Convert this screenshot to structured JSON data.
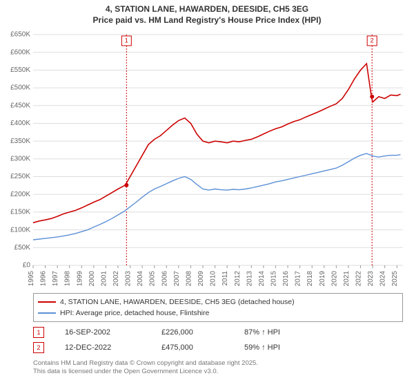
{
  "title_line1": "4, STATION LANE, HAWARDEN, DEESIDE, CH5 3EG",
  "title_line2": "Price paid vs. HM Land Registry's House Price Index (HPI)",
  "chart": {
    "type": "line",
    "background_color": "#ffffff",
    "grid_color": "#dddddd",
    "axis_text_color": "#666666",
    "xlim": [
      1995,
      2025.5
    ],
    "ylim": [
      0,
      650000
    ],
    "ytick_step": 50000,
    "ytick_labels": [
      "£0",
      "£50K",
      "£100K",
      "£150K",
      "£200K",
      "£250K",
      "£300K",
      "£350K",
      "£400K",
      "£450K",
      "£500K",
      "£550K",
      "£600K",
      "£650K"
    ],
    "xticks": [
      1995,
      1996,
      1997,
      1998,
      1999,
      2000,
      2001,
      2002,
      2003,
      2004,
      2005,
      2006,
      2007,
      2008,
      2009,
      2010,
      2011,
      2012,
      2013,
      2014,
      2015,
      2016,
      2017,
      2018,
      2019,
      2020,
      2021,
      2022,
      2023,
      2024,
      2025
    ],
    "series": {
      "price_paid": {
        "label": "4, STATION LANE, HAWARDEN, DEESIDE, CH5 3EG (detached house)",
        "color": "#cc0000",
        "line_width": 1.6,
        "data": [
          [
            1995.0,
            120000
          ],
          [
            1995.5,
            125000
          ],
          [
            1996.0,
            128000
          ],
          [
            1996.5,
            132000
          ],
          [
            1997.0,
            138000
          ],
          [
            1997.5,
            145000
          ],
          [
            1998.0,
            150000
          ],
          [
            1998.5,
            155000
          ],
          [
            1999.0,
            162000
          ],
          [
            1999.5,
            170000
          ],
          [
            2000.0,
            178000
          ],
          [
            2000.5,
            185000
          ],
          [
            2001.0,
            195000
          ],
          [
            2001.5,
            205000
          ],
          [
            2002.0,
            215000
          ],
          [
            2002.6,
            226000
          ],
          [
            2003.0,
            250000
          ],
          [
            2003.5,
            280000
          ],
          [
            2004.0,
            310000
          ],
          [
            2004.5,
            340000
          ],
          [
            2005.0,
            355000
          ],
          [
            2005.5,
            365000
          ],
          [
            2006.0,
            380000
          ],
          [
            2006.5,
            395000
          ],
          [
            2007.0,
            408000
          ],
          [
            2007.5,
            415000
          ],
          [
            2008.0,
            400000
          ],
          [
            2008.5,
            370000
          ],
          [
            2009.0,
            350000
          ],
          [
            2009.5,
            345000
          ],
          [
            2010.0,
            350000
          ],
          [
            2010.5,
            348000
          ],
          [
            2011.0,
            345000
          ],
          [
            2011.5,
            350000
          ],
          [
            2012.0,
            348000
          ],
          [
            2012.5,
            352000
          ],
          [
            2013.0,
            355000
          ],
          [
            2013.5,
            362000
          ],
          [
            2014.0,
            370000
          ],
          [
            2014.5,
            378000
          ],
          [
            2015.0,
            385000
          ],
          [
            2015.5,
            390000
          ],
          [
            2016.0,
            398000
          ],
          [
            2016.5,
            405000
          ],
          [
            2017.0,
            410000
          ],
          [
            2017.5,
            418000
          ],
          [
            2018.0,
            425000
          ],
          [
            2018.5,
            432000
          ],
          [
            2019.0,
            440000
          ],
          [
            2019.5,
            448000
          ],
          [
            2020.0,
            455000
          ],
          [
            2020.5,
            470000
          ],
          [
            2021.0,
            495000
          ],
          [
            2021.5,
            525000
          ],
          [
            2022.0,
            550000
          ],
          [
            2022.5,
            568000
          ],
          [
            2022.9,
            475000
          ],
          [
            2023.0,
            460000
          ],
          [
            2023.5,
            475000
          ],
          [
            2024.0,
            470000
          ],
          [
            2024.5,
            480000
          ],
          [
            2025.0,
            478000
          ],
          [
            2025.3,
            482000
          ]
        ]
      },
      "hpi": {
        "label": "HPI: Average price, detached house, Flintshire",
        "color": "#5b8fd6",
        "line_width": 1.4,
        "data": [
          [
            1995.0,
            72000
          ],
          [
            1995.5,
            74000
          ],
          [
            1996.0,
            76000
          ],
          [
            1996.5,
            78000
          ],
          [
            1997.0,
            80000
          ],
          [
            1997.5,
            83000
          ],
          [
            1998.0,
            86000
          ],
          [
            1998.5,
            90000
          ],
          [
            1999.0,
            95000
          ],
          [
            1999.5,
            100000
          ],
          [
            2000.0,
            108000
          ],
          [
            2000.5,
            115000
          ],
          [
            2001.0,
            123000
          ],
          [
            2001.5,
            132000
          ],
          [
            2002.0,
            142000
          ],
          [
            2002.5,
            152000
          ],
          [
            2003.0,
            165000
          ],
          [
            2003.5,
            178000
          ],
          [
            2004.0,
            192000
          ],
          [
            2004.5,
            205000
          ],
          [
            2005.0,
            215000
          ],
          [
            2005.5,
            222000
          ],
          [
            2006.0,
            230000
          ],
          [
            2006.5,
            238000
          ],
          [
            2007.0,
            245000
          ],
          [
            2007.5,
            250000
          ],
          [
            2008.0,
            242000
          ],
          [
            2008.5,
            228000
          ],
          [
            2009.0,
            215000
          ],
          [
            2009.5,
            212000
          ],
          [
            2010.0,
            215000
          ],
          [
            2010.5,
            213000
          ],
          [
            2011.0,
            212000
          ],
          [
            2011.5,
            214000
          ],
          [
            2012.0,
            213000
          ],
          [
            2012.5,
            215000
          ],
          [
            2013.0,
            218000
          ],
          [
            2013.5,
            222000
          ],
          [
            2014.0,
            226000
          ],
          [
            2014.5,
            230000
          ],
          [
            2015.0,
            235000
          ],
          [
            2015.5,
            238000
          ],
          [
            2016.0,
            242000
          ],
          [
            2016.5,
            246000
          ],
          [
            2017.0,
            250000
          ],
          [
            2017.5,
            254000
          ],
          [
            2018.0,
            258000
          ],
          [
            2018.5,
            262000
          ],
          [
            2019.0,
            266000
          ],
          [
            2019.5,
            270000
          ],
          [
            2020.0,
            274000
          ],
          [
            2020.5,
            282000
          ],
          [
            2021.0,
            292000
          ],
          [
            2021.5,
            302000
          ],
          [
            2022.0,
            310000
          ],
          [
            2022.5,
            315000
          ],
          [
            2023.0,
            308000
          ],
          [
            2023.5,
            305000
          ],
          [
            2024.0,
            308000
          ],
          [
            2024.5,
            310000
          ],
          [
            2025.0,
            310000
          ],
          [
            2025.3,
            312000
          ]
        ]
      }
    },
    "markers": [
      {
        "n": "1",
        "year": 2002.7,
        "color": "#cc0000",
        "date": "16-SEP-2002",
        "price": "£226,000",
        "hpi_delta": "87% ↑ HPI",
        "dot_value": 226000
      },
      {
        "n": "2",
        "year": 2022.95,
        "color": "#cc0000",
        "date": "12-DEC-2022",
        "price": "£475,000",
        "hpi_delta": "59% ↑ HPI",
        "dot_value": 475000
      }
    ]
  },
  "footer_line1": "Contains HM Land Registry data © Crown copyright and database right 2025.",
  "footer_line2": "This data is licensed under the Open Government Licence v3.0."
}
